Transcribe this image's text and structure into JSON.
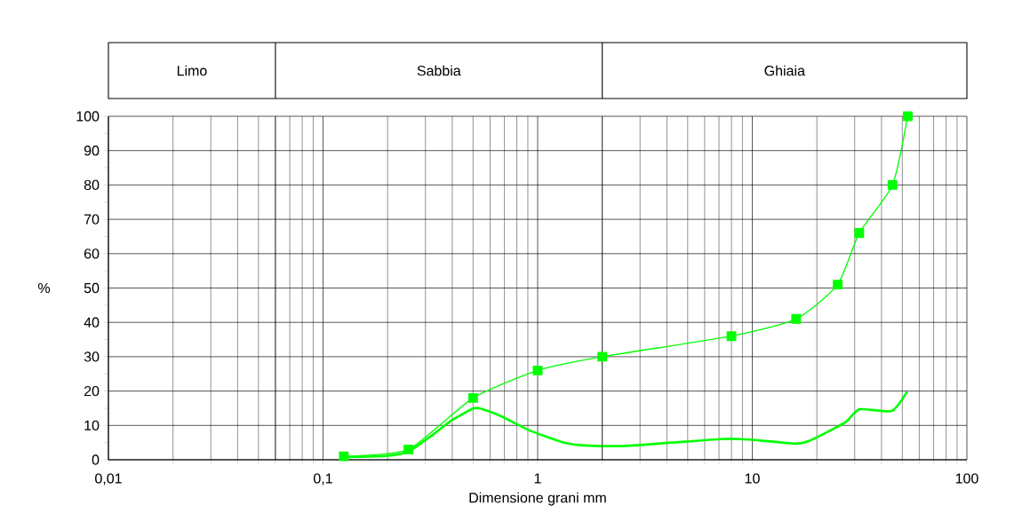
{
  "chart_data": {
    "type": "line",
    "xlabel": "Dimensione grani mm",
    "ylabel": "%",
    "log": "x",
    "grid": true,
    "xlim": [
      0.01,
      100
    ],
    "xticks": [
      {
        "value": 0.01,
        "label": "0,01"
      },
      {
        "value": 0.1,
        "label": "0,1"
      },
      1,
      10,
      100
    ],
    "ylim": [
      0,
      100
    ],
    "yticks": [
      0,
      10,
      20,
      30,
      40,
      50,
      60,
      70,
      80,
      90,
      100
    ],
    "ref_lines": [
      {
        "axis": "x",
        "value": 0.06
      },
      {
        "axis": "x",
        "value": 2
      }
    ],
    "annotations": [
      "Limo",
      "Sabbia",
      "Ghiaia"
    ],
    "series": [
      {
        "color": "#00ff00",
        "marker": "square",
        "x": [
          0.125,
          0.25,
          0.5,
          1,
          2,
          8,
          16,
          25,
          31.5,
          45,
          53
        ],
        "values": [
          1,
          3,
          18,
          26,
          30,
          36,
          41,
          51,
          66,
          80,
          100
        ]
      },
      {
        "color": "#00ff00",
        "marker": "none",
        "x": [
          0.125,
          0.195,
          0.25,
          0.32,
          0.4,
          0.5,
          0.54,
          0.68,
          0.92,
          1.34,
          1.74,
          2.7,
          7.1,
          8.8,
          11,
          15.7,
          18.3,
          27,
          31.6,
          44.7,
          52.6
        ],
        "values": [
          0.8,
          1.1,
          2.4,
          7,
          11.6,
          14.9,
          14.9,
          12.6,
          8.5,
          4.9,
          4.1,
          4.1,
          6,
          6,
          5.6,
          4.7,
          5.4,
          10.8,
          14.7,
          14.2,
          19.8
        ]
      }
    ]
  }
}
